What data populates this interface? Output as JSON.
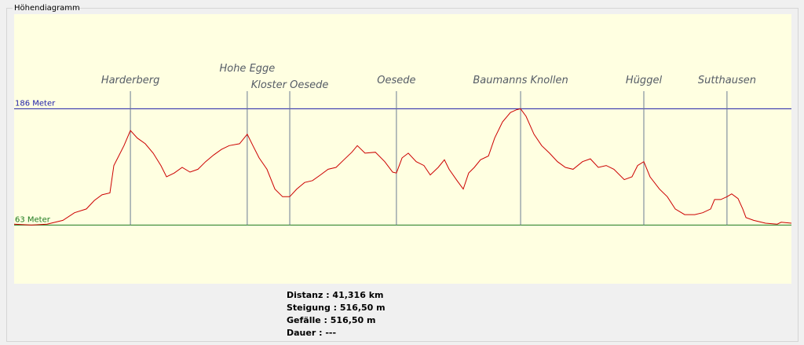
{
  "chart_data": {
    "type": "line",
    "title": "Höhendiagramm",
    "color": "#cc0000",
    "x": [
      0,
      0.92,
      1.75,
      2.59,
      3.21,
      3.84,
      4.26,
      4.67,
      5.09,
      5.3,
      5.51,
      5.84,
      6.18,
      6.55,
      6.97,
      7.39,
      7.8,
      8.1,
      8.51,
      8.93,
      9.35,
      9.77,
      10.18,
      10.6,
      11.02,
      11.43,
      11.98,
      12.39,
      12.69,
      13.02,
      13.44,
      13.86,
      14.27,
      14.65,
      15.02,
      15.44,
      15.86,
      16.28,
      16.69,
      17.11,
      17.53,
      17.95,
      18.24,
      18.65,
      19.2,
      19.7,
      20.12,
      20.32,
      20.62,
      20.95,
      21.37,
      21.78,
      22.12,
      22.54,
      22.87,
      23.12,
      23.54,
      23.87,
      24.16,
      24.46,
      24.79,
      25.21,
      25.54,
      25.96,
      26.38,
      26.71,
      26.92,
      27.21,
      27.63,
      28.04,
      28.46,
      28.88,
      29.3,
      29.71,
      30.21,
      30.63,
      31.05,
      31.47,
      31.88,
      32.43,
      32.84,
      33.14,
      33.47,
      33.8,
      34.3,
      34.72,
      35.14,
      35.64,
      36.18,
      36.6,
      37.02,
      37.23,
      37.56,
      37.89,
      38.14,
      38.48,
      38.73,
      38.9,
      39.31,
      39.94,
      40.56,
      40.77,
      41.316
    ],
    "values": [
      64,
      63,
      64,
      68,
      76,
      80,
      89,
      95,
      97,
      126,
      134,
      147,
      163,
      155,
      149,
      139,
      126,
      114,
      118,
      124,
      119,
      122,
      130,
      137,
      143,
      147,
      149,
      159,
      147,
      134,
      122,
      101,
      93,
      93,
      101,
      108,
      110,
      116,
      122,
      124,
      132,
      140,
      147,
      139,
      140,
      130,
      119,
      118,
      134,
      139,
      130,
      126,
      116,
      124,
      132,
      122,
      110,
      101,
      118,
      124,
      132,
      136,
      155,
      172,
      182,
      185,
      186,
      178,
      159,
      147,
      139,
      130,
      124,
      122,
      130,
      133,
      124,
      126,
      122,
      111,
      114,
      126,
      130,
      114,
      101,
      93,
      80,
      74,
      74,
      76,
      80,
      90,
      90,
      93,
      96,
      91,
      80,
      71,
      68,
      65,
      64,
      66,
      65
    ],
    "xlim": [
      0,
      41.316
    ],
    "ylim": [
      1,
      286
    ],
    "yticks": [
      {
        "value": 63,
        "label": "63 Meter"
      },
      {
        "value": 186,
        "label": "186 Meter"
      }
    ],
    "ytick_colors": [
      "#1e7a1e",
      "#1c1ca8"
    ],
    "annotations": [
      {
        "text": "Harderberg",
        "x": 6.18
      },
      {
        "text": "Hohe Egge",
        "x": 12.39
      },
      {
        "text": "Kloster Oesede",
        "x": 14.65
      },
      {
        "text": "Oesede",
        "x": 20.32
      },
      {
        "text": "Baumanns Knollen",
        "x": 26.92
      },
      {
        "text": "Hüggel",
        "x": 33.47
      },
      {
        "text": "Sutthausen",
        "x": 37.89
      }
    ],
    "summary": [
      "Distanz : 41,316 km",
      "Steigung : 516,50 m",
      "Gefälle : 516,50 m",
      "Dauer : ---"
    ]
  }
}
